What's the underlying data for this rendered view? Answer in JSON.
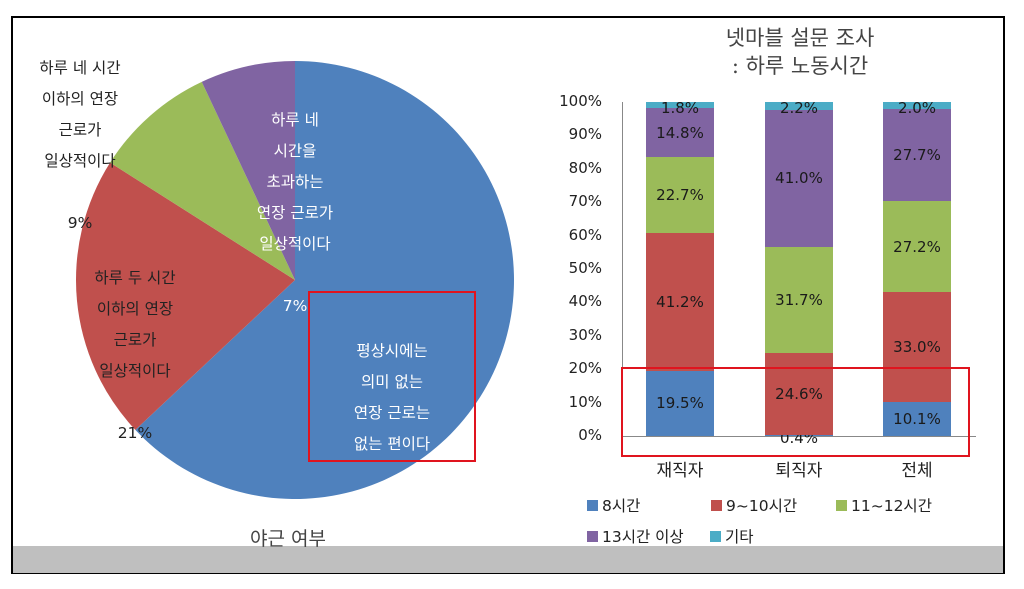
{
  "colors": {
    "blue": "#4f81bd",
    "red": "#c0504d",
    "green": "#9bbb59",
    "purple": "#8064a2",
    "cyan": "#4bacc6",
    "highlight": "#e0141e",
    "bottom_bar": "#bfbfbf"
  },
  "pie": {
    "title": "야근 여부",
    "slices": [
      {
        "label": "평상시에는\n의미 없는\n연장 근로는\n없는 편이다",
        "value": "63%"
      },
      {
        "label": "하루 두 시간\n이하의 연장\n근로가\n일상적이다",
        "value": "21%"
      },
      {
        "label": "하루 네 시간\n이하의 연장\n근로가\n일상적이다",
        "value": "9%"
      },
      {
        "label": "하루 네\n시간을\n초과하는\n연장 근로가\n일상적이다",
        "value": "7%"
      }
    ]
  },
  "bar": {
    "title": "넷마블 설문 조사\n: 하루 노동시간",
    "yticks": [
      "100%",
      "90%",
      "80%",
      "70%",
      "60%",
      "50%",
      "40%",
      "30%",
      "20%",
      "10%",
      "0%"
    ],
    "categories": [
      "재직자",
      "퇴직자",
      "전체"
    ],
    "legend": [
      "8시간",
      "9~10시간",
      "11~12시간",
      "13시간 이상",
      "기타"
    ],
    "labels": {
      "c0": [
        "19.5%",
        "41.2%",
        "22.7%",
        "14.8%",
        "1.8%"
      ],
      "c1": [
        "0.4%",
        "24.6%",
        "31.7%",
        "41.0%",
        "2.2%"
      ],
      "c2": [
        "10.1%",
        "33.0%",
        "27.2%",
        "27.7%",
        "2.0%"
      ]
    }
  },
  "chart_data": [
    {
      "type": "pie",
      "title": "야근 여부",
      "categories": [
        "평상시에는 의미 없는 연장 근로는 없는 편이다",
        "하루 두 시간 이하의 연장 근로가 일상적이다",
        "하루 네 시간 이하의 연장 근로가 일상적이다",
        "하루 네 시간을 초과하는 연장 근로가 일상적이다"
      ],
      "values": [
        63,
        21,
        9,
        7
      ],
      "colors": [
        "#4f81bd",
        "#c0504d",
        "#9bbb59",
        "#8064a2"
      ],
      "annotation": "red box highlighting 63% slice"
    },
    {
      "type": "bar",
      "stacked": true,
      "percent": true,
      "title": "넷마블 설문 조사 : 하루 노동시간",
      "categories": [
        "재직자",
        "퇴직자",
        "전체"
      ],
      "series": [
        {
          "name": "8시간",
          "values": [
            19.5,
            0.4,
            10.1
          ],
          "color": "#4f81bd"
        },
        {
          "name": "9~10시간",
          "values": [
            41.2,
            24.6,
            33.0
          ],
          "color": "#c0504d"
        },
        {
          "name": "11~12시간",
          "values": [
            22.7,
            31.7,
            27.2
          ],
          "color": "#9bbb59"
        },
        {
          "name": "13시간 이상",
          "values": [
            14.8,
            41.0,
            27.7
          ],
          "color": "#8064a2"
        },
        {
          "name": "기타",
          "values": [
            1.8,
            2.2,
            2.0
          ],
          "color": "#4bacc6"
        }
      ],
      "xlabel": "",
      "ylabel": "",
      "ylim": [
        0,
        100
      ],
      "yticks": [
        0,
        10,
        20,
        30,
        40,
        50,
        60,
        70,
        80,
        90,
        100
      ],
      "legend_position": "bottom",
      "grid": false,
      "annotation": "red box highlighting 0–20% region"
    }
  ]
}
